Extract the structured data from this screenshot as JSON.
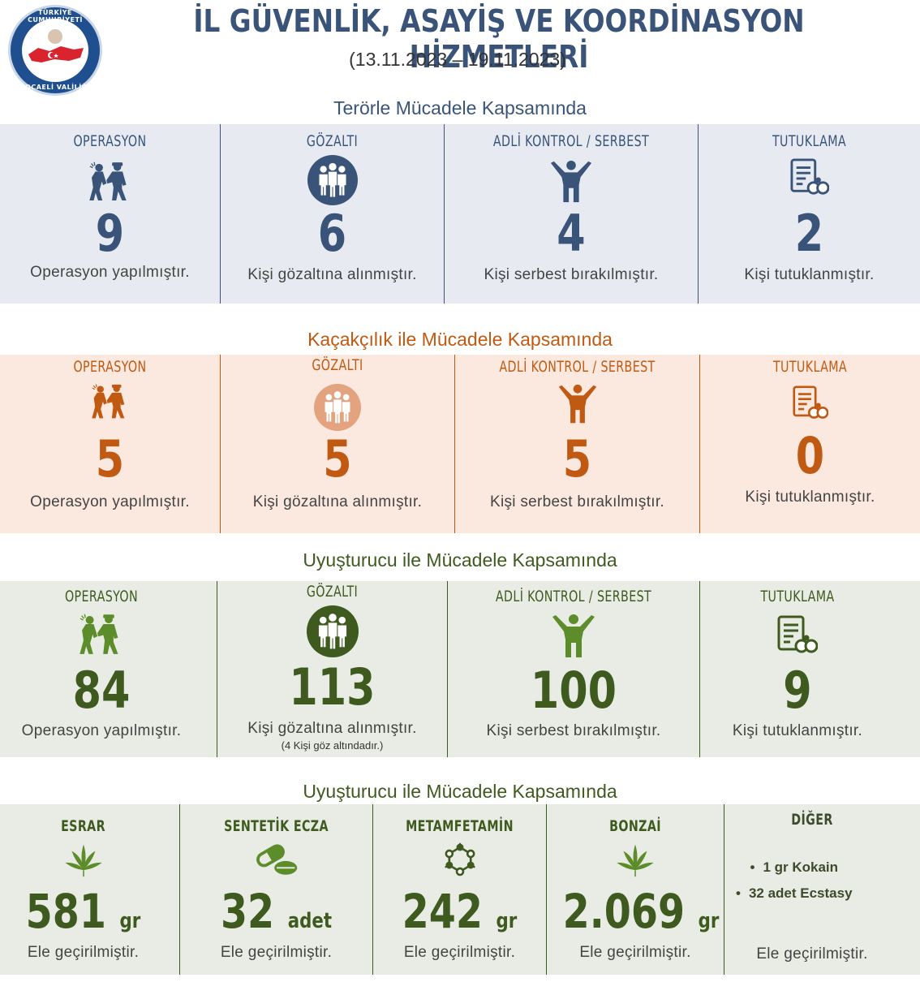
{
  "header": {
    "logo_top_text": "TÜRKİYE CUMHURİYETİ",
    "logo_bottom_text": "KOCAELİ VALİLİĞİ",
    "title": "İL GÜVENLİK, ASAYİŞ VE KOORDİNASYON HİZMETLERİ",
    "dates": "(13.11.2023 – 19.11.2023)"
  },
  "colors": {
    "terror": "#3a5479",
    "terror_bg": "#e7ebf1",
    "smuggling": "#c05a12",
    "smuggling_bg": "#fbe9e0",
    "drug": "#3f5a1f",
    "drug_icon": "#5d8c2a",
    "drug_bg": "#e8ece4"
  },
  "terror": {
    "title": "Terörle Mücadele Kapsamında",
    "cols": [
      {
        "label": "OPERASYON",
        "icon": "arrest-icon",
        "value": "9",
        "desc": "Operasyon yapılmıştır."
      },
      {
        "label": "GÖZALTI",
        "icon": "group-icon",
        "value": "6",
        "desc": "Kişi gözaltına alınmıştır."
      },
      {
        "label": "ADLİ KONTROL / SERBEST",
        "icon": "freedom-icon",
        "value": "4",
        "desc": "Kişi serbest bırakılmıştır."
      },
      {
        "label": "TUTUKLAMA",
        "icon": "document-handcuff-icon",
        "value": "2",
        "desc": "Kişi tutuklanmıştır."
      }
    ]
  },
  "smuggling": {
    "title": "Kaçakçılık ile Mücadele Kapsamında",
    "cols": [
      {
        "label": "OPERASYON",
        "icon": "arrest-icon",
        "value": "5",
        "desc": "Operasyon yapılmıştır."
      },
      {
        "label": "GÖZALTI",
        "icon": "group-icon",
        "value": "5",
        "desc": "Kişi gözaltına alınmıştır."
      },
      {
        "label": "ADLİ KONTROL / SERBEST",
        "icon": "freedom-icon",
        "value": "5",
        "desc": "Kişi serbest bırakılmıştır."
      },
      {
        "label": "TUTUKLAMA",
        "icon": "document-handcuff-icon",
        "value": "0",
        "desc": "Kişi tutuklanmıştır."
      }
    ]
  },
  "drug": {
    "title": "Uyuşturucu ile Mücadele Kapsamında",
    "cols": [
      {
        "label": "OPERASYON",
        "icon": "arrest-icon",
        "value": "84",
        "desc": "Operasyon yapılmıştır."
      },
      {
        "label": "GÖZALTI",
        "icon": "group-icon",
        "value": "113",
        "desc": "Kişi gözaltına alınmıştır.",
        "note": "(4 Kişi  göz altındadır.)"
      },
      {
        "label": "ADLİ KONTROL / SERBEST",
        "icon": "freedom-icon",
        "value": "100",
        "desc": "Kişi serbest bırakılmıştır."
      },
      {
        "label": "TUTUKLAMA",
        "icon": "document-handcuff-icon",
        "value": "9",
        "desc": "Kişi tutuklanmıştır."
      }
    ]
  },
  "seizure": {
    "title": "Uyuşturucu ile  Mücadele Kapsamında",
    "cols": [
      {
        "label": "ESRAR",
        "icon": "cannabis-leaf-icon",
        "value": "581",
        "unit": "gr",
        "desc": "Ele geçirilmiştir."
      },
      {
        "label": "SENTETİK  ECZA",
        "icon": "pills-icon",
        "value": "32",
        "unit": "adet",
        "desc": "Ele geçirilmiştir."
      },
      {
        "label": "METAMFETAMİN",
        "icon": "molecule-icon",
        "value": "242",
        "unit": "gr",
        "desc": "Ele geçirilmiştir."
      },
      {
        "label": "BONZAİ",
        "icon": "cannabis-leaf-icon",
        "value": "2.069",
        "unit": "gr",
        "desc": "Ele geçirilmiştir."
      }
    ],
    "other": {
      "label": "DİĞER",
      "items": [
        "1 gr Kokain",
        "32 adet Ecstasy"
      ],
      "desc": "Ele geçirilmiştir."
    }
  }
}
